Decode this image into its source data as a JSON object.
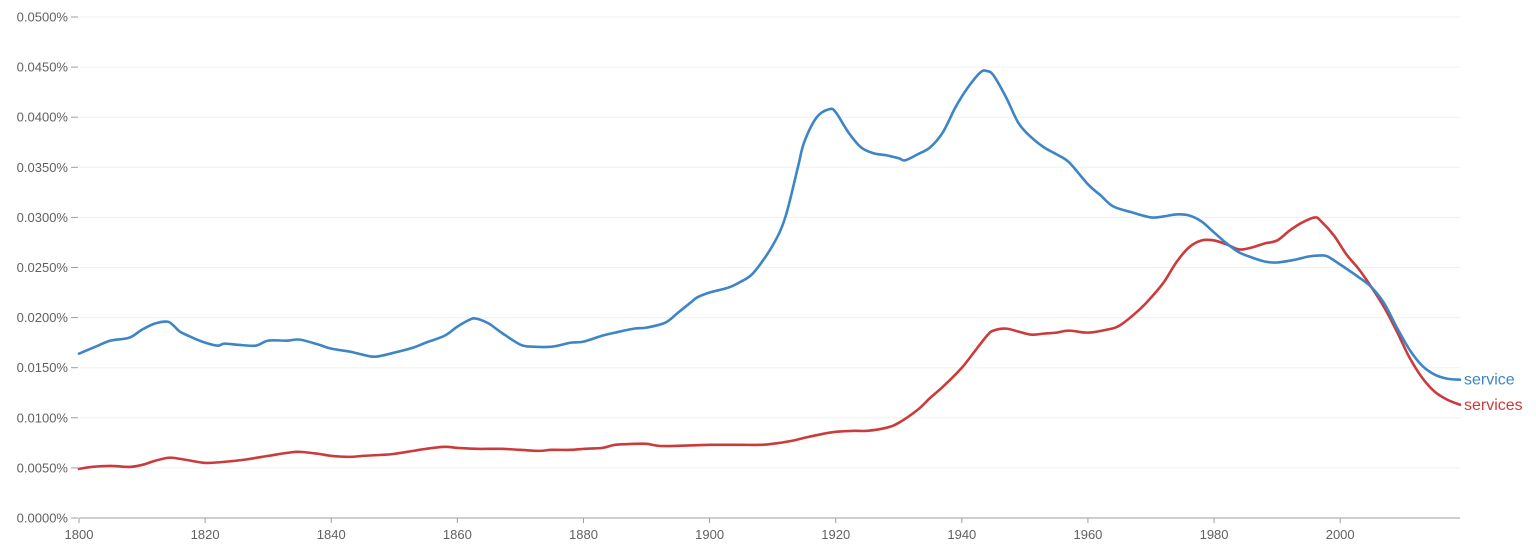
{
  "chart_data": {
    "type": "line",
    "title": "",
    "xlabel": "",
    "ylabel": "",
    "xlim": [
      1800,
      2019
    ],
    "ylim": [
      0,
      0.05
    ],
    "grid": true,
    "legend": "inline-right",
    "x_ticks": [
      {
        "value": 1800,
        "label": "1800"
      },
      {
        "value": 1820,
        "label": "1820"
      },
      {
        "value": 1840,
        "label": "1840"
      },
      {
        "value": 1860,
        "label": "1860"
      },
      {
        "value": 1880,
        "label": "1880"
      },
      {
        "value": 1900,
        "label": "1900"
      },
      {
        "value": 1920,
        "label": "1920"
      },
      {
        "value": 1940,
        "label": "1940"
      },
      {
        "value": 1960,
        "label": "1960"
      },
      {
        "value": 1980,
        "label": "1980"
      },
      {
        "value": 2000,
        "label": "2000"
      }
    ],
    "y_ticks": [
      {
        "value": 0.0,
        "label": "0.0000%"
      },
      {
        "value": 0.005,
        "label": "0.0050%"
      },
      {
        "value": 0.01,
        "label": "0.0100%"
      },
      {
        "value": 0.015,
        "label": "0.0150%"
      },
      {
        "value": 0.02,
        "label": "0.0200%"
      },
      {
        "value": 0.025,
        "label": "0.0250%"
      },
      {
        "value": 0.03,
        "label": "0.0300%"
      },
      {
        "value": 0.035,
        "label": "0.0350%"
      },
      {
        "value": 0.04,
        "label": "0.0400%"
      },
      {
        "value": 0.045,
        "label": "0.0450%"
      },
      {
        "value": 0.05,
        "label": "0.0500%"
      }
    ],
    "series": [
      {
        "name": "service",
        "color": "#3d85c6",
        "x": [
          1800,
          1803,
          1805,
          1808,
          1810,
          1812,
          1814,
          1815,
          1816,
          1818,
          1820,
          1822,
          1823,
          1825,
          1828,
          1830,
          1833,
          1835,
          1838,
          1840,
          1843,
          1845,
          1847,
          1850,
          1853,
          1855,
          1858,
          1860,
          1862,
          1863,
          1865,
          1867,
          1870,
          1872,
          1875,
          1878,
          1880,
          1883,
          1885,
          1888,
          1890,
          1893,
          1895,
          1897,
          1898,
          1900,
          1903,
          1905,
          1907,
          1910,
          1912,
          1914,
          1915,
          1917,
          1919,
          1920,
          1922,
          1924,
          1926,
          1928,
          1930,
          1931,
          1933,
          1935,
          1937,
          1939,
          1941,
          1943,
          1944,
          1945,
          1947,
          1949,
          1951,
          1953,
          1955,
          1957,
          1960,
          1962,
          1964,
          1967,
          1970,
          1972,
          1974,
          1976,
          1978,
          1980,
          1982,
          1984,
          1986,
          1988,
          1990,
          1993,
          1995,
          1997,
          1998,
          2000,
          2003,
          2005,
          2007,
          2009,
          2011,
          2013,
          2015,
          2017,
          2019
        ],
        "values": [
          0.0164,
          0.0172,
          0.0177,
          0.018,
          0.0188,
          0.0194,
          0.0196,
          0.0192,
          0.0186,
          0.018,
          0.0175,
          0.0172,
          0.0174,
          0.0173,
          0.0172,
          0.0177,
          0.0177,
          0.0178,
          0.0173,
          0.0169,
          0.0166,
          0.0163,
          0.0161,
          0.0165,
          0.017,
          0.0175,
          0.0182,
          0.0191,
          0.0198,
          0.0199,
          0.0194,
          0.0185,
          0.0173,
          0.0171,
          0.0171,
          0.0175,
          0.0176,
          0.0182,
          0.0185,
          0.0189,
          0.019,
          0.0195,
          0.0205,
          0.0215,
          0.022,
          0.0225,
          0.023,
          0.0236,
          0.0245,
          0.0272,
          0.03,
          0.035,
          0.0375,
          0.04,
          0.0408,
          0.0405,
          0.0385,
          0.037,
          0.0364,
          0.0362,
          0.0359,
          0.0357,
          0.0363,
          0.037,
          0.0385,
          0.041,
          0.043,
          0.0445,
          0.0446,
          0.0442,
          0.042,
          0.0394,
          0.038,
          0.037,
          0.0363,
          0.0355,
          0.0333,
          0.0322,
          0.0311,
          0.0305,
          0.03,
          0.0301,
          0.0303,
          0.0302,
          0.0296,
          0.0285,
          0.0274,
          0.0265,
          0.026,
          0.0256,
          0.0255,
          0.0258,
          0.0261,
          0.0262,
          0.0261,
          0.0253,
          0.024,
          0.023,
          0.0214,
          0.019,
          0.0168,
          0.0152,
          0.0143,
          0.0139,
          0.0138
        ]
      },
      {
        "name": "services",
        "color": "#cc3b3b",
        "x": [
          1800,
          1802,
          1805,
          1808,
          1810,
          1812,
          1814,
          1815,
          1817,
          1820,
          1823,
          1826,
          1830,
          1833,
          1835,
          1838,
          1840,
          1843,
          1845,
          1848,
          1850,
          1853,
          1855,
          1858,
          1860,
          1863,
          1867,
          1870,
          1873,
          1875,
          1878,
          1880,
          1883,
          1885,
          1888,
          1890,
          1892,
          1895,
          1900,
          1903,
          1905,
          1908,
          1910,
          1913,
          1915,
          1918,
          1920,
          1923,
          1925,
          1928,
          1930,
          1933,
          1935,
          1937,
          1940,
          1942,
          1944,
          1945,
          1947,
          1949,
          1951,
          1953,
          1955,
          1957,
          1960,
          1963,
          1965,
          1968,
          1970,
          1972,
          1974,
          1976,
          1978,
          1980,
          1982,
          1984,
          1986,
          1988,
          1990,
          1992,
          1994,
          1996,
          1997,
          1999,
          2001,
          2003,
          2005,
          2007,
          2009,
          2011,
          2013,
          2015,
          2017,
          2019
        ],
        "values": [
          0.0049,
          0.0051,
          0.0052,
          0.0051,
          0.0053,
          0.0057,
          0.006,
          0.006,
          0.0058,
          0.0055,
          0.0056,
          0.0058,
          0.0062,
          0.0065,
          0.0066,
          0.0064,
          0.0062,
          0.0061,
          0.0062,
          0.0063,
          0.0064,
          0.0067,
          0.0069,
          0.0071,
          0.007,
          0.0069,
          0.0069,
          0.0068,
          0.0067,
          0.0068,
          0.0068,
          0.0069,
          0.007,
          0.0073,
          0.0074,
          0.0074,
          0.0072,
          0.0072,
          0.0073,
          0.0073,
          0.0073,
          0.0073,
          0.0074,
          0.0077,
          0.008,
          0.0084,
          0.0086,
          0.0087,
          0.0087,
          0.009,
          0.0095,
          0.0108,
          0.012,
          0.0131,
          0.015,
          0.0166,
          0.0182,
          0.0187,
          0.0189,
          0.0186,
          0.0183,
          0.0184,
          0.0185,
          0.0187,
          0.0185,
          0.0188,
          0.0192,
          0.0207,
          0.022,
          0.0235,
          0.0255,
          0.027,
          0.0277,
          0.0277,
          0.0273,
          0.0268,
          0.027,
          0.0274,
          0.0277,
          0.0287,
          0.0295,
          0.03,
          0.0296,
          0.0282,
          0.0263,
          0.0248,
          0.023,
          0.021,
          0.0186,
          0.016,
          0.014,
          0.0126,
          0.0118,
          0.0113
        ]
      }
    ]
  }
}
